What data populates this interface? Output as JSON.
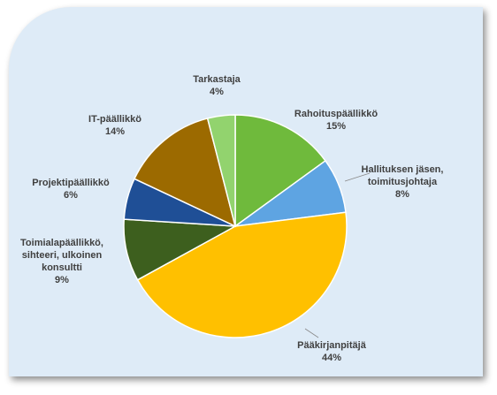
{
  "chart_data": {
    "type": "pie",
    "categories": [
      "Rahoituspäällikkö",
      "Hallituksen jäsen, toimitusjohtaja",
      "Pääkirjanpitäjä",
      "Toimialapäällikkö, sihteeri, ulkoinen konsultti",
      "Projektipäällikkö",
      "IT-päällikkö",
      "Tarkastaja"
    ],
    "values": [
      15,
      8,
      44,
      9,
      6,
      14,
      4
    ],
    "value_labels": [
      "15%",
      "8%",
      "44%",
      "9%",
      "6%",
      "14%",
      "4%"
    ],
    "colors": [
      "#6fba3c",
      "#5ea4e2",
      "#ffc000",
      "#3d5f1e",
      "#1f4f96",
      "#9c6a00",
      "#92d36e"
    ]
  }
}
